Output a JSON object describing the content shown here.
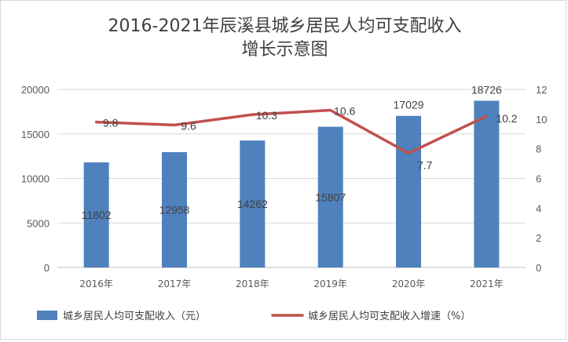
{
  "chart_data": {
    "type": "bar+line",
    "title_line1": "2016-2021年辰溪县城乡居民人均可支配收入",
    "title_line2": "增长示意图",
    "categories": [
      "2016年",
      "2017年",
      "2018年",
      "2019年",
      "2020年",
      "2021年"
    ],
    "series": [
      {
        "name": "城乡居民人均可支配收入（元）",
        "type": "bar",
        "axis": "left",
        "values": [
          11802,
          12958,
          14262,
          15807,
          17029,
          18726
        ],
        "color": "#4f81bd"
      },
      {
        "name": "城乡居民人均可支配收入增速（%）",
        "type": "line",
        "axis": "right",
        "values": [
          9.8,
          9.6,
          10.3,
          10.6,
          7.7,
          10.2
        ],
        "color": "#c0504d"
      }
    ],
    "y_left": {
      "min": 0,
      "max": 20000,
      "ticks": [
        0,
        5000,
        10000,
        15000,
        20000
      ]
    },
    "y_right": {
      "min": 0,
      "max": 12,
      "ticks": [
        0,
        2,
        4,
        6,
        8,
        10,
        12
      ]
    },
    "grid": true,
    "legend_position": "bottom"
  }
}
